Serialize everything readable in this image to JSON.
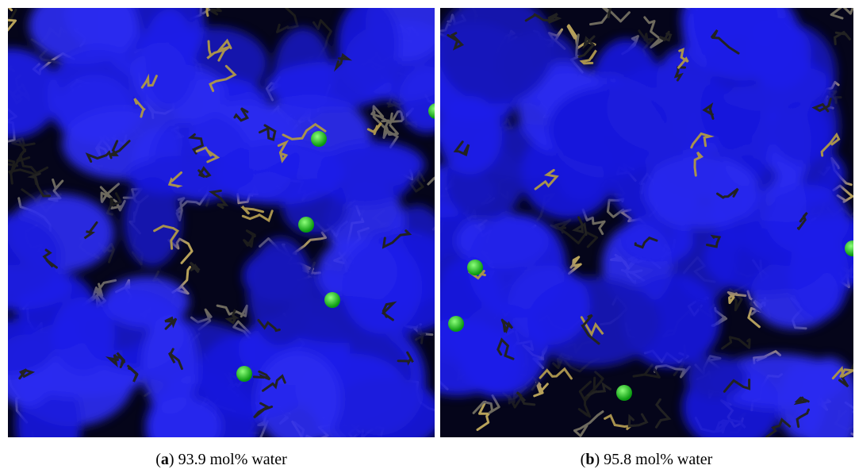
{
  "panels": [
    {
      "prefix": "(",
      "label": "a",
      "suffix": ")",
      "caption": "93.9 mol% water"
    },
    {
      "prefix": "(",
      "label": "b",
      "suffix": ")",
      "caption": "95.8 mol% water"
    }
  ]
}
